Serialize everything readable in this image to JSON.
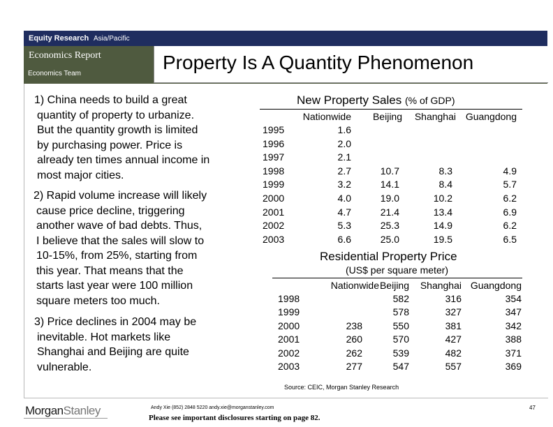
{
  "header": {
    "research": "Equity Research",
    "region": "Asia/Pacific",
    "report": "Economics Report",
    "team": "Economics Team",
    "title": "Property Is A Quantity Phenomenon"
  },
  "paragraphs": [
    {
      "first": "1) China needs to build a great",
      "rest": [
        "quantity of property to urbanize.",
        "But the quantity growth is limited",
        "by purchasing power.  Price is",
        "already ten times annual income in",
        "most major cities."
      ]
    },
    {
      "first": "2) Rapid volume increase will likely",
      "rest": [
        "cause price decline, triggering",
        "another wave of bad debts.  Thus,",
        "I believe that the sales will slow to",
        "10-15%, from 25%, starting from",
        "this year.  That means that the",
        "starts last year were 100 million",
        "square meters too much."
      ]
    },
    {
      "first": "3) Price declines in 2004 may be",
      "rest": [
        "inevitable.  Hot markets like",
        "Shanghai and Beijing are quite",
        "vulnerable."
      ]
    }
  ],
  "sales_table": {
    "title": "New Property Sales",
    "title_unit": "(% of GDP)",
    "headers": [
      "Nationwide",
      "Beijing",
      "Shanghai",
      "Guangdong"
    ],
    "rows": [
      {
        "year": "1995",
        "values": [
          "1.6",
          "",
          "",
          ""
        ]
      },
      {
        "year": "1996",
        "values": [
          "2.0",
          "",
          "",
          ""
        ]
      },
      {
        "year": "1997",
        "values": [
          "2.1",
          "",
          "",
          ""
        ]
      },
      {
        "year": "1998",
        "values": [
          "2.7",
          "10.7",
          "8.3",
          "4.9"
        ]
      },
      {
        "year": "1999",
        "values": [
          "3.2",
          "14.1",
          "8.4",
          "5.7"
        ]
      },
      {
        "year": "2000",
        "values": [
          "4.0",
          "19.0",
          "10.2",
          "6.2"
        ]
      },
      {
        "year": "2001",
        "values": [
          "4.7",
          "21.4",
          "13.4",
          "6.9"
        ]
      },
      {
        "year": "2002",
        "values": [
          "5.3",
          "25.3",
          "14.9",
          "6.2"
        ]
      },
      {
        "year": "2003",
        "values": [
          "6.6",
          "25.0",
          "19.5",
          "6.5"
        ]
      }
    ]
  },
  "price_table": {
    "title": "Residential Property Price",
    "subtitle": "(US$ per square meter)",
    "headers": [
      "Nationwide",
      "Beijing",
      "Shanghai",
      "Guangdong"
    ],
    "rows": [
      {
        "year": "1998",
        "values": [
          "",
          "582",
          "316",
          "354"
        ]
      },
      {
        "year": "1999",
        "values": [
          "",
          "578",
          "327",
          "347"
        ]
      },
      {
        "year": "2000",
        "values": [
          "238",
          "550",
          "381",
          "342"
        ]
      },
      {
        "year": "2001",
        "values": [
          "260",
          "570",
          "427",
          "388"
        ]
      },
      {
        "year": "2002",
        "values": [
          "262",
          "539",
          "482",
          "371"
        ]
      },
      {
        "year": "2003",
        "values": [
          "277",
          "547",
          "557",
          "369"
        ]
      }
    ]
  },
  "source": "Source: CEIC, Morgan Stanley Research",
  "footer": {
    "logo_morgan": "Morgan",
    "logo_stanley": "Stanley",
    "contact": "Andy Xie (852) 2848 5220  andy.xie@morganstanley.com",
    "disclosure": "Please see important disclosures starting on page 82.",
    "page": "47"
  }
}
